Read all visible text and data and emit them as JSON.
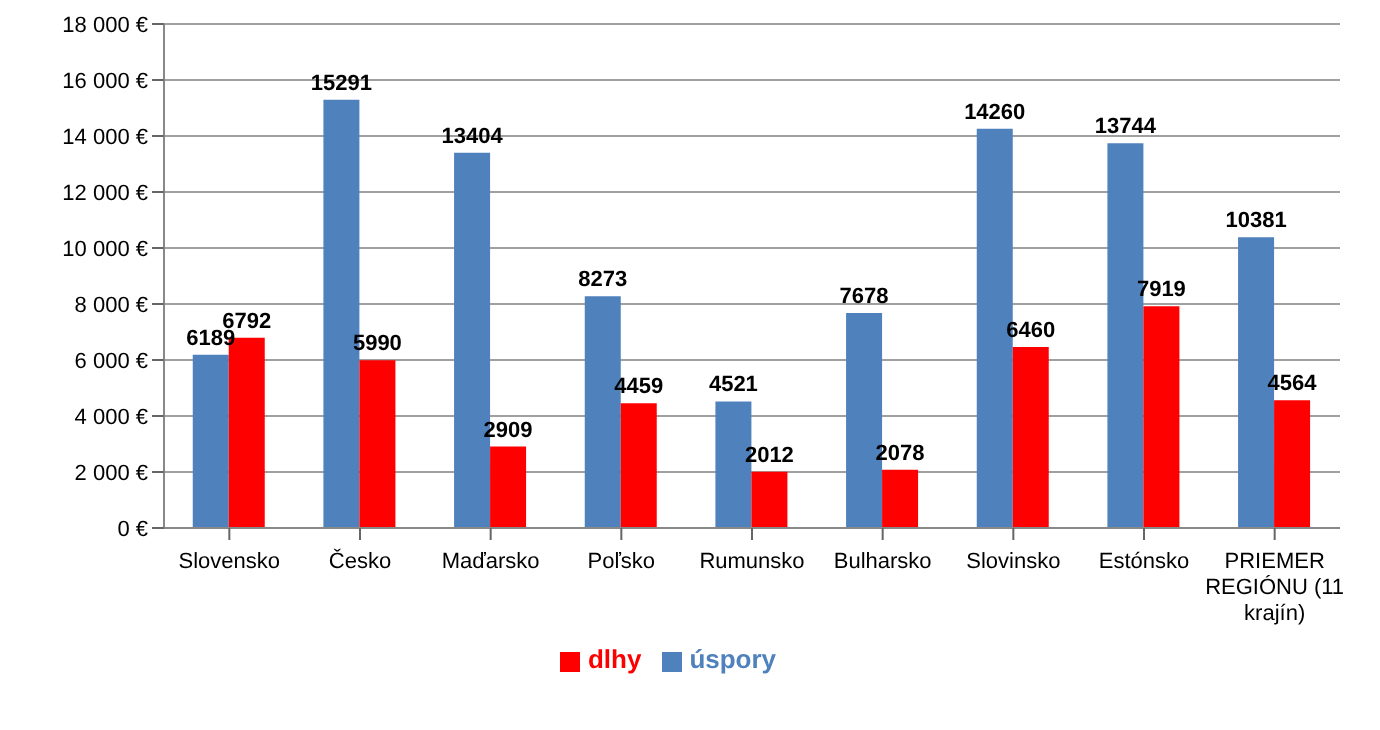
{
  "chart_data": {
    "type": "bar",
    "categories": [
      "Slovensko",
      "Česko",
      "Maďarsko",
      "Poľsko",
      "Rumunsko",
      "Bulharsko",
      "Slovinsko",
      "Estónsko",
      "PRIEMER REGIÓNU (11 krajín)"
    ],
    "series": [
      {
        "name": "úspory",
        "color": "#4f81bd",
        "values": [
          6189,
          15291,
          13404,
          8273,
          4521,
          7678,
          14260,
          13744,
          10381
        ]
      },
      {
        "name": "dlhy",
        "color": "#ff0000",
        "values": [
          6792,
          5990,
          2909,
          4459,
          2012,
          2078,
          6460,
          7919,
          4564
        ]
      }
    ],
    "ylim": [
      0,
      18000
    ],
    "yticks": [
      {
        "value": 0,
        "label": "0 €"
      },
      {
        "value": 2000,
        "label": "2 000 €"
      },
      {
        "value": 4000,
        "label": "4 000 €"
      },
      {
        "value": 6000,
        "label": "6 000 €"
      },
      {
        "value": 8000,
        "label": "8 000 €"
      },
      {
        "value": 10000,
        "label": "10 000 €"
      },
      {
        "value": 12000,
        "label": "12 000 €"
      },
      {
        "value": 14000,
        "label": "14 000 €"
      },
      {
        "value": 16000,
        "label": "16 000 €"
      },
      {
        "value": 18000,
        "label": "18 000 €"
      }
    ],
    "grid": "y",
    "legend": "bottom",
    "data_labels": true
  }
}
